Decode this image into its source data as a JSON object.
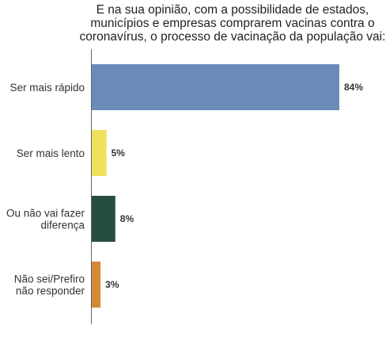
{
  "chart_data": {
    "type": "bar",
    "orientation": "horizontal",
    "title_lines": [
      "E na sua opinião, com a possibilidade de estados,",
      "municípios e empresas comprarem vacinas contra o",
      "coronavírus, o processo de vacinação da população vai:"
    ],
    "categories": [
      [
        "Ser mais rápido"
      ],
      [
        "Ser mais lento"
      ],
      [
        "Ou não vai fazer",
        "diferença"
      ],
      [
        "Não sei/Prefiro",
        "não responder"
      ]
    ],
    "values": [
      84,
      5,
      8,
      3
    ],
    "value_labels": [
      "84%",
      "5%",
      "8%",
      "3%"
    ],
    "colors": [
      "#6a8bb8",
      "#ede15b",
      "#274d3e",
      "#d28a36"
    ],
    "xlim": [
      0,
      84
    ],
    "xlabel": "",
    "ylabel": "",
    "grid": false,
    "legend": "none"
  }
}
